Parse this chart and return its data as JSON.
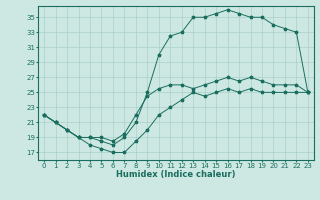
{
  "xlabel": "Humidex (Indice chaleur)",
  "bg_color": "#cde8e2",
  "line_color": "#1a6e60",
  "grid_color": "#aad0c8",
  "xlim": [
    -0.5,
    23.5
  ],
  "ylim": [
    16.0,
    36.5
  ],
  "xticks": [
    0,
    1,
    2,
    3,
    4,
    5,
    6,
    7,
    8,
    9,
    10,
    11,
    12,
    13,
    14,
    15,
    16,
    17,
    18,
    19,
    20,
    21,
    22,
    23
  ],
  "yticks": [
    17,
    19,
    21,
    23,
    25,
    27,
    29,
    31,
    33,
    35
  ],
  "line1_x": [
    0,
    1,
    2,
    3,
    4,
    5,
    6,
    7,
    8,
    9,
    10,
    11,
    12,
    13,
    14,
    15,
    16,
    17,
    18,
    19,
    20,
    21,
    22,
    23
  ],
  "line1_y": [
    22,
    21,
    20,
    19,
    18,
    17.5,
    17,
    17,
    18.5,
    20,
    22,
    23,
    24,
    25,
    24.5,
    25,
    25.5,
    25,
    25.5,
    25,
    25,
    25,
    25,
    25
  ],
  "line2_x": [
    0,
    1,
    2,
    3,
    4,
    5,
    6,
    7,
    8,
    9,
    10,
    11,
    12,
    13,
    14,
    15,
    16,
    17,
    18,
    19,
    20,
    21,
    22,
    23
  ],
  "line2_y": [
    22,
    21,
    20,
    19,
    19,
    18.5,
    18,
    19,
    21,
    25,
    30,
    32.5,
    33,
    35,
    35,
    35.5,
    36,
    35.5,
    35,
    35,
    34,
    33.5,
    33,
    25
  ],
  "line3_x": [
    0,
    1,
    2,
    3,
    4,
    5,
    6,
    7,
    8,
    9,
    10,
    11,
    12,
    13,
    14,
    15,
    16,
    17,
    18,
    19,
    20,
    21,
    22,
    23
  ],
  "line3_y": [
    22,
    21,
    20,
    19,
    19,
    19,
    18.5,
    19.5,
    22,
    24.5,
    25.5,
    26,
    26,
    25.5,
    26,
    26.5,
    27,
    26.5,
    27,
    26.5,
    26,
    26,
    26,
    25
  ],
  "figsize": [
    3.2,
    2.0
  ],
  "dpi": 100,
  "tick_fontsize": 5,
  "xlabel_fontsize": 6
}
